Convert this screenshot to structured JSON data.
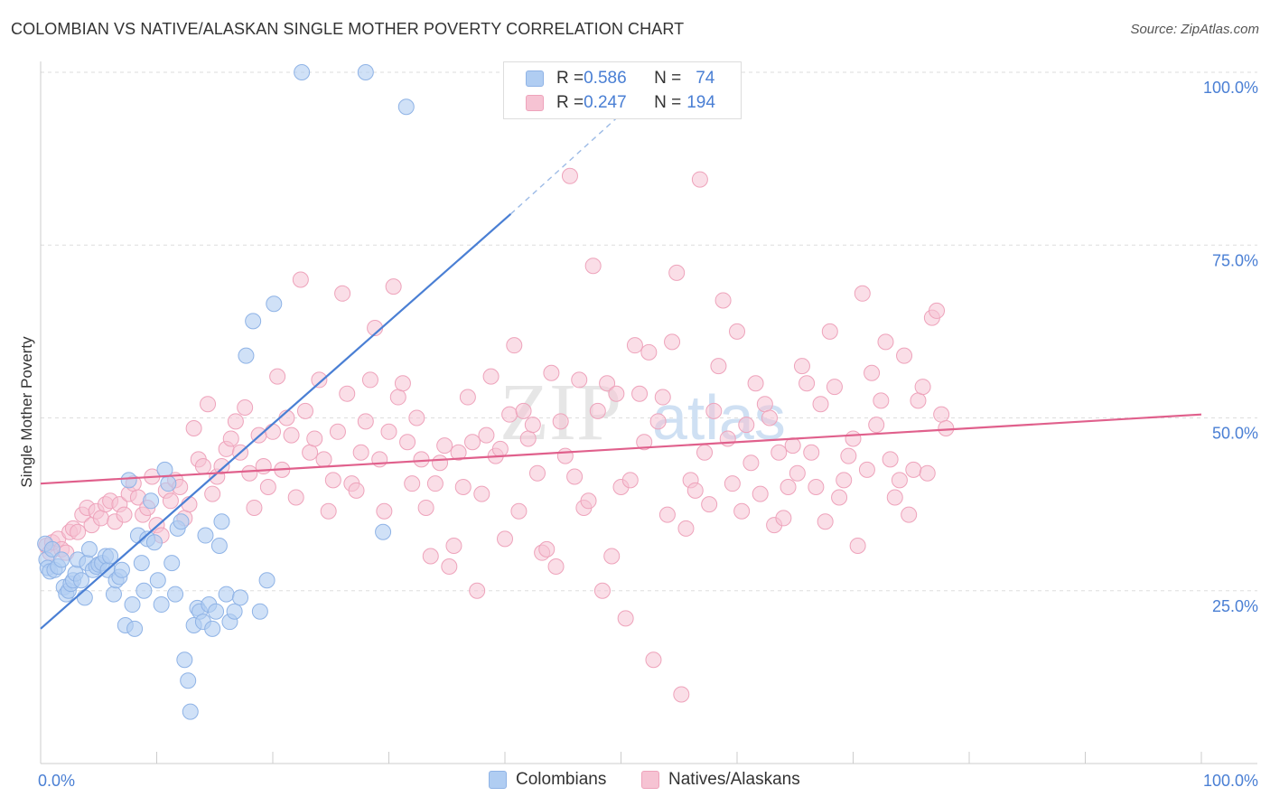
{
  "title": "COLOMBIAN VS NATIVE/ALASKAN SINGLE MOTHER POVERTY CORRELATION CHART",
  "source": "Source: ZipAtlas.com",
  "watermark": {
    "zip": "ZIP",
    "atlas": "atlas"
  },
  "colors": {
    "blue": "#4a7fd4",
    "pink": "#e0608c",
    "blue_fill": "#b0cdf2",
    "pink_fill": "#f6c3d3",
    "grid": "#dddddd",
    "axis_text": "#4a7fd4"
  },
  "legend": {
    "rows": [
      {
        "r_label": "R = ",
        "r_value": "0.586",
        "n_label": "N = ",
        "n_value": "74"
      },
      {
        "r_label": "R = ",
        "r_value": "0.247",
        "n_label": "N = ",
        "n_value": "194"
      }
    ]
  },
  "bottom_legend": {
    "series1": "Colombians",
    "series2": "Natives/Alaskans"
  },
  "chart_data": {
    "type": "scatter",
    "title": "COLOMBIAN VS NATIVE/ALASKAN SINGLE MOTHER POVERTY CORRELATION CHART",
    "xlabel": "",
    "ylabel": "Single Mother Poverty",
    "xlim": [
      0,
      100
    ],
    "ylim": [
      0,
      100
    ],
    "x_tick_labels": [
      "0.0%",
      "100.0%"
    ],
    "y_tick_labels": [
      "25.0%",
      "50.0%",
      "75.0%",
      "100.0%"
    ],
    "y_ticks": [
      25,
      50,
      75,
      100
    ],
    "series": [
      {
        "name": "Colombians",
        "R": 0.586,
        "N": 74,
        "trend": {
          "x0": 0,
          "y0": 19.5,
          "x1": 40.5,
          "y1": 79.5,
          "dash_to_x": 52,
          "dash_to_y": 97
        },
        "points": [
          [
            0.4,
            31.8
          ],
          [
            0.5,
            29.5
          ],
          [
            0.6,
            28.3
          ],
          [
            0.8,
            27.8
          ],
          [
            1.0,
            31.0
          ],
          [
            1.2,
            28.0
          ],
          [
            1.5,
            28.5
          ],
          [
            1.8,
            29.5
          ],
          [
            2.0,
            25.5
          ],
          [
            2.2,
            24.5
          ],
          [
            2.4,
            25.0
          ],
          [
            2.6,
            26.0
          ],
          [
            2.8,
            26.5
          ],
          [
            3.0,
            27.5
          ],
          [
            3.2,
            29.5
          ],
          [
            3.5,
            26.5
          ],
          [
            3.8,
            24.0
          ],
          [
            4.0,
            29.0
          ],
          [
            4.2,
            31.0
          ],
          [
            4.5,
            28.0
          ],
          [
            4.8,
            28.5
          ],
          [
            5.0,
            28.8
          ],
          [
            5.3,
            29.0
          ],
          [
            5.6,
            30.0
          ],
          [
            5.8,
            28.0
          ],
          [
            6.0,
            30.0
          ],
          [
            6.3,
            24.5
          ],
          [
            6.5,
            26.5
          ],
          [
            6.8,
            27.0
          ],
          [
            7.0,
            28.0
          ],
          [
            7.3,
            20.0
          ],
          [
            7.6,
            41.0
          ],
          [
            7.9,
            23.0
          ],
          [
            8.1,
            19.5
          ],
          [
            8.4,
            33.0
          ],
          [
            8.7,
            29.0
          ],
          [
            8.9,
            25.0
          ],
          [
            9.2,
            32.5
          ],
          [
            9.5,
            38.0
          ],
          [
            9.8,
            32.0
          ],
          [
            10.1,
            26.5
          ],
          [
            10.4,
            23.0
          ],
          [
            10.7,
            42.5
          ],
          [
            11.0,
            40.5
          ],
          [
            11.3,
            29.0
          ],
          [
            11.6,
            24.5
          ],
          [
            11.8,
            34.0
          ],
          [
            12.1,
            35.0
          ],
          [
            12.4,
            15.0
          ],
          [
            12.7,
            12.0
          ],
          [
            12.9,
            7.5
          ],
          [
            13.2,
            20.0
          ],
          [
            13.5,
            22.5
          ],
          [
            13.7,
            22.0
          ],
          [
            14.0,
            20.5
          ],
          [
            14.2,
            33.0
          ],
          [
            14.5,
            23.0
          ],
          [
            14.8,
            19.5
          ],
          [
            15.1,
            22.0
          ],
          [
            15.4,
            31.5
          ],
          [
            15.6,
            35.0
          ],
          [
            16.0,
            24.5
          ],
          [
            16.3,
            20.5
          ],
          [
            16.7,
            22.0
          ],
          [
            17.2,
            24.0
          ],
          [
            17.7,
            59.0
          ],
          [
            18.3,
            64.0
          ],
          [
            18.9,
            22.0
          ],
          [
            19.5,
            26.5
          ],
          [
            20.1,
            66.5
          ],
          [
            22.5,
            100.0
          ],
          [
            28.0,
            100.0
          ],
          [
            31.5,
            95.0
          ],
          [
            29.5,
            33.5
          ]
        ]
      },
      {
        "name": "Natives/Alaskans",
        "R": 0.247,
        "N": 194,
        "trend": {
          "x0": 0,
          "y0": 40.5,
          "x1": 100,
          "y1": 50.5
        },
        "points": [
          [
            0.5,
            31.5
          ],
          [
            0.8,
            30.5
          ],
          [
            1.0,
            32.0
          ],
          [
            1.5,
            32.5
          ],
          [
            1.8,
            31.0
          ],
          [
            2.2,
            30.5
          ],
          [
            2.5,
            33.5
          ],
          [
            2.8,
            34.0
          ],
          [
            3.2,
            33.5
          ],
          [
            3.6,
            36.0
          ],
          [
            4.0,
            37.0
          ],
          [
            4.4,
            34.5
          ],
          [
            4.8,
            36.5
          ],
          [
            5.2,
            35.5
          ],
          [
            5.6,
            37.5
          ],
          [
            6.0,
            38.0
          ],
          [
            6.4,
            35.0
          ],
          [
            6.8,
            37.5
          ],
          [
            7.2,
            36.0
          ],
          [
            7.6,
            39.0
          ],
          [
            8.0,
            40.5
          ],
          [
            8.4,
            38.5
          ],
          [
            8.8,
            36.0
          ],
          [
            9.2,
            37.0
          ],
          [
            9.6,
            41.5
          ],
          [
            10.0,
            34.5
          ],
          [
            10.4,
            33.0
          ],
          [
            10.8,
            39.5
          ],
          [
            11.2,
            38.0
          ],
          [
            11.6,
            41.0
          ],
          [
            12.0,
            40.0
          ],
          [
            12.4,
            35.5
          ],
          [
            12.8,
            37.5
          ],
          [
            13.2,
            48.5
          ],
          [
            13.6,
            44.0
          ],
          [
            14.0,
            43.0
          ],
          [
            14.4,
            52.0
          ],
          [
            14.8,
            39.0
          ],
          [
            15.2,
            41.5
          ],
          [
            15.6,
            43.0
          ],
          [
            16.0,
            45.5
          ],
          [
            16.4,
            47.0
          ],
          [
            16.8,
            49.5
          ],
          [
            17.2,
            45.0
          ],
          [
            17.6,
            51.5
          ],
          [
            18.0,
            42.0
          ],
          [
            18.4,
            37.0
          ],
          [
            18.8,
            47.5
          ],
          [
            19.2,
            43.0
          ],
          [
            19.6,
            40.0
          ],
          [
            20.0,
            48.0
          ],
          [
            20.4,
            56.0
          ],
          [
            20.8,
            42.5
          ],
          [
            21.2,
            50.0
          ],
          [
            21.6,
            47.5
          ],
          [
            22.0,
            38.5
          ],
          [
            22.4,
            70.0
          ],
          [
            22.8,
            51.0
          ],
          [
            23.2,
            45.0
          ],
          [
            23.6,
            47.0
          ],
          [
            24.0,
            55.5
          ],
          [
            24.4,
            44.0
          ],
          [
            24.8,
            36.5
          ],
          [
            25.2,
            41.0
          ],
          [
            25.6,
            48.0
          ],
          [
            26.0,
            68.0
          ],
          [
            26.4,
            53.5
          ],
          [
            26.8,
            40.5
          ],
          [
            27.2,
            39.5
          ],
          [
            27.6,
            45.0
          ],
          [
            28.0,
            49.5
          ],
          [
            28.4,
            55.5
          ],
          [
            28.8,
            63.0
          ],
          [
            29.2,
            44.0
          ],
          [
            29.6,
            36.5
          ],
          [
            30.0,
            48.0
          ],
          [
            30.4,
            69.0
          ],
          [
            30.8,
            53.0
          ],
          [
            31.2,
            55.0
          ],
          [
            31.6,
            46.5
          ],
          [
            32.0,
            40.5
          ],
          [
            32.4,
            50.0
          ],
          [
            32.8,
            44.0
          ],
          [
            33.2,
            37.0
          ],
          [
            33.6,
            30.0
          ],
          [
            34.0,
            40.5
          ],
          [
            34.4,
            43.5
          ],
          [
            34.8,
            46.0
          ],
          [
            35.2,
            28.5
          ],
          [
            35.6,
            31.5
          ],
          [
            36.0,
            45.0
          ],
          [
            36.4,
            40.0
          ],
          [
            36.8,
            53.0
          ],
          [
            37.2,
            46.5
          ],
          [
            37.6,
            25.0
          ],
          [
            38.0,
            39.0
          ],
          [
            38.4,
            47.5
          ],
          [
            38.8,
            56.0
          ],
          [
            39.2,
            44.5
          ],
          [
            39.6,
            45.5
          ],
          [
            40.0,
            32.5
          ],
          [
            40.4,
            50.5
          ],
          [
            40.8,
            60.5
          ],
          [
            41.2,
            36.5
          ],
          [
            41.6,
            51.0
          ],
          [
            42.0,
            47.0
          ],
          [
            42.4,
            49.0
          ],
          [
            42.8,
            42.0
          ],
          [
            43.2,
            30.5
          ],
          [
            43.6,
            31.0
          ],
          [
            44.0,
            56.5
          ],
          [
            44.4,
            28.5
          ],
          [
            44.8,
            49.5
          ],
          [
            45.2,
            44.5
          ],
          [
            45.6,
            85.0
          ],
          [
            46.0,
            41.5
          ],
          [
            46.4,
            55.5
          ],
          [
            46.8,
            37.0
          ],
          [
            47.2,
            38.0
          ],
          [
            47.6,
            72.0
          ],
          [
            48.0,
            51.0
          ],
          [
            48.4,
            25.0
          ],
          [
            48.8,
            55.0
          ],
          [
            49.2,
            30.0
          ],
          [
            49.6,
            53.5
          ],
          [
            50.0,
            40.0
          ],
          [
            50.4,
            21.0
          ],
          [
            50.8,
            41.0
          ],
          [
            51.2,
            60.5
          ],
          [
            51.6,
            53.5
          ],
          [
            52.0,
            46.5
          ],
          [
            52.4,
            59.5
          ],
          [
            52.8,
            15.0
          ],
          [
            53.2,
            49.5
          ],
          [
            53.6,
            53.0
          ],
          [
            54.0,
            36.0
          ],
          [
            54.4,
            61.0
          ],
          [
            54.8,
            71.0
          ],
          [
            55.2,
            10.0
          ],
          [
            55.6,
            34.0
          ],
          [
            56.0,
            41.0
          ],
          [
            56.4,
            39.5
          ],
          [
            56.8,
            84.5
          ],
          [
            57.2,
            45.0
          ],
          [
            57.6,
            37.5
          ],
          [
            58.0,
            51.0
          ],
          [
            58.4,
            57.5
          ],
          [
            58.8,
            67.0
          ],
          [
            59.2,
            47.0
          ],
          [
            59.6,
            40.5
          ],
          [
            60.0,
            62.5
          ],
          [
            60.4,
            36.5
          ],
          [
            60.8,
            49.0
          ],
          [
            61.2,
            43.5
          ],
          [
            61.6,
            55.0
          ],
          [
            62.0,
            39.0
          ],
          [
            62.4,
            52.0
          ],
          [
            62.8,
            50.0
          ],
          [
            63.2,
            34.5
          ],
          [
            63.6,
            45.0
          ],
          [
            64.0,
            35.5
          ],
          [
            64.4,
            40.0
          ],
          [
            64.8,
            46.0
          ],
          [
            65.2,
            42.0
          ],
          [
            65.6,
            57.5
          ],
          [
            66.0,
            55.0
          ],
          [
            66.4,
            45.0
          ],
          [
            66.8,
            40.0
          ],
          [
            67.2,
            52.0
          ],
          [
            67.6,
            35.0
          ],
          [
            68.0,
            62.5
          ],
          [
            68.4,
            54.5
          ],
          [
            68.8,
            38.5
          ],
          [
            69.2,
            41.0
          ],
          [
            69.6,
            44.5
          ],
          [
            70.0,
            47.0
          ],
          [
            70.4,
            31.5
          ],
          [
            70.8,
            68.0
          ],
          [
            71.2,
            42.5
          ],
          [
            71.6,
            56.5
          ],
          [
            72.0,
            49.0
          ],
          [
            72.4,
            52.5
          ],
          [
            72.8,
            61.0
          ],
          [
            73.2,
            44.0
          ],
          [
            73.6,
            38.5
          ],
          [
            74.0,
            41.0
          ],
          [
            74.4,
            59.0
          ],
          [
            74.8,
            36.0
          ],
          [
            75.2,
            42.5
          ],
          [
            75.6,
            52.5
          ],
          [
            76.0,
            54.5
          ],
          [
            76.4,
            42.0
          ],
          [
            76.8,
            64.5
          ],
          [
            77.2,
            65.5
          ],
          [
            77.6,
            50.5
          ],
          [
            78.0,
            48.5
          ]
        ]
      }
    ]
  }
}
